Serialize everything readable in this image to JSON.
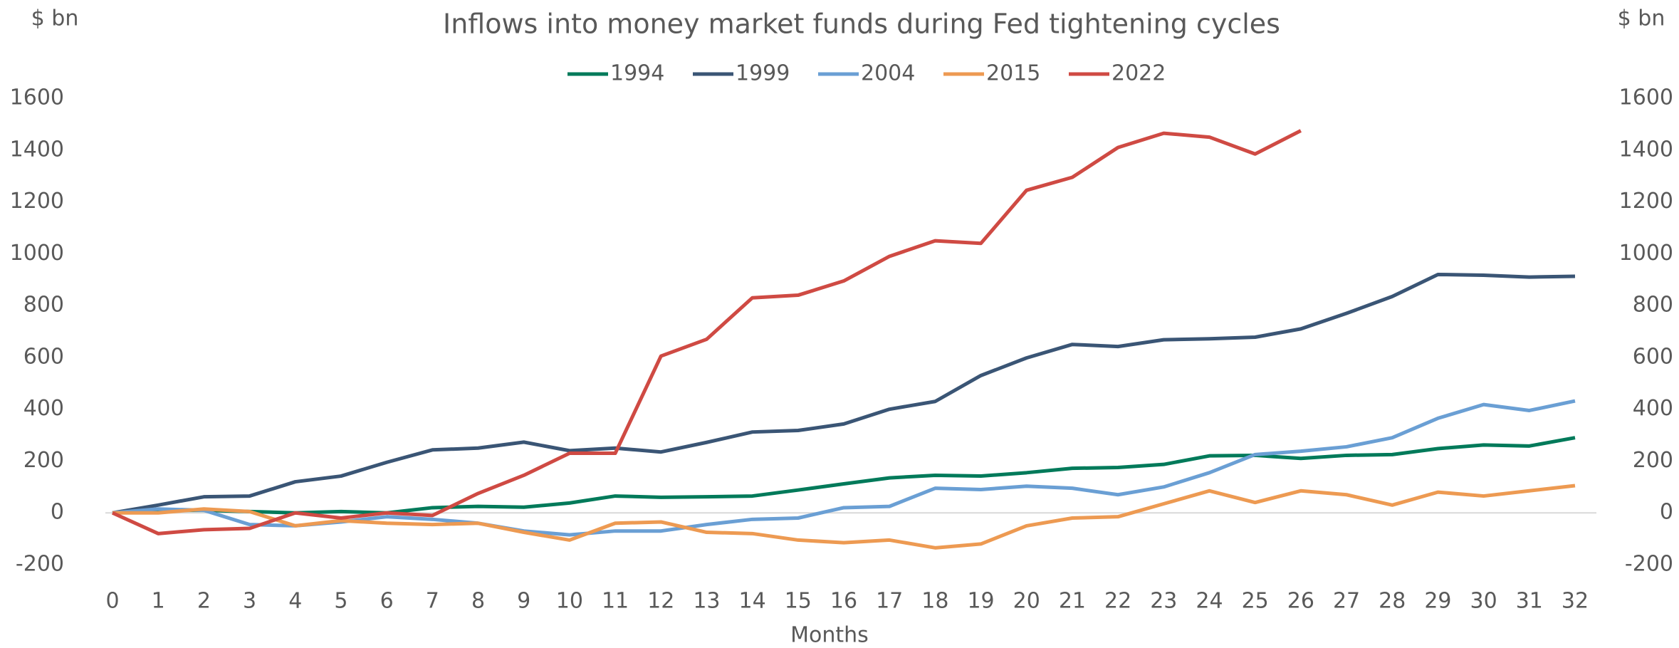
{
  "chart_data": {
    "type": "line",
    "title": "Inflows into money market funds during Fed tightening cycles",
    "ylabel": "$ bn",
    "y2label": "$ bn",
    "xlabel": "Months",
    "x": [
      0,
      1,
      2,
      3,
      4,
      5,
      6,
      7,
      8,
      9,
      10,
      11,
      12,
      13,
      14,
      15,
      16,
      17,
      18,
      19,
      20,
      21,
      22,
      23,
      24,
      25,
      26,
      27,
      28,
      29,
      30,
      31,
      32
    ],
    "xlim": [
      0,
      32
    ],
    "ylim": [
      -200,
      1600
    ],
    "yticks": [
      -200,
      0,
      200,
      400,
      600,
      800,
      1000,
      1200,
      1400,
      1600
    ],
    "y2lim": [
      -200,
      1600
    ],
    "y2ticks": [
      -200,
      0,
      200,
      400,
      600,
      800,
      1000,
      1200,
      1400,
      1600
    ],
    "legend": "top",
    "series": [
      {
        "name": "1994",
        "color": "#007a5a",
        "values": [
          0,
          10,
          10,
          5,
          0,
          5,
          0,
          20,
          25,
          22,
          38,
          65,
          60,
          62,
          65,
          88,
          112,
          135,
          145,
          142,
          155,
          172,
          175,
          187,
          220,
          222,
          210,
          222,
          225,
          248,
          262,
          258,
          290
        ]
      },
      {
        "name": "1999",
        "color": "#3a5575",
        "values": [
          0,
          30,
          62,
          65,
          120,
          142,
          195,
          243,
          250,
          273,
          240,
          250,
          235,
          272,
          312,
          318,
          343,
          400,
          430,
          530,
          598,
          650,
          642,
          668,
          672,
          678,
          710,
          770,
          835,
          920,
          917,
          910,
          913
        ]
      },
      {
        "name": "2004",
        "color": "#6a9fd4",
        "values": [
          0,
          15,
          10,
          -45,
          -50,
          -35,
          -15,
          -25,
          -40,
          -70,
          -85,
          -70,
          -70,
          -45,
          -25,
          -20,
          20,
          25,
          95,
          90,
          103,
          95,
          70,
          100,
          155,
          225,
          238,
          255,
          290,
          365,
          418,
          395,
          432
        ]
      },
      {
        "name": "2015",
        "color": "#ed9a52",
        "values": [
          0,
          0,
          15,
          5,
          -50,
          -30,
          -40,
          -45,
          -40,
          -75,
          -105,
          -40,
          -35,
          -75,
          -80,
          -105,
          -115,
          -105,
          -135,
          -120,
          -50,
          -20,
          -15,
          35,
          85,
          40,
          85,
          70,
          30,
          80,
          65,
          85,
          105
        ]
      },
      {
        "name": "2022",
        "color": "#cf4a43",
        "values": [
          0,
          -80,
          -65,
          -60,
          0,
          -20,
          0,
          -10,
          75,
          145,
          230,
          230,
          605,
          670,
          830,
          840,
          895,
          990,
          1050,
          1040,
          1245,
          1295,
          1410,
          1465,
          1450,
          1385,
          1475,
          null,
          null,
          null,
          null,
          null,
          null
        ]
      }
    ]
  }
}
